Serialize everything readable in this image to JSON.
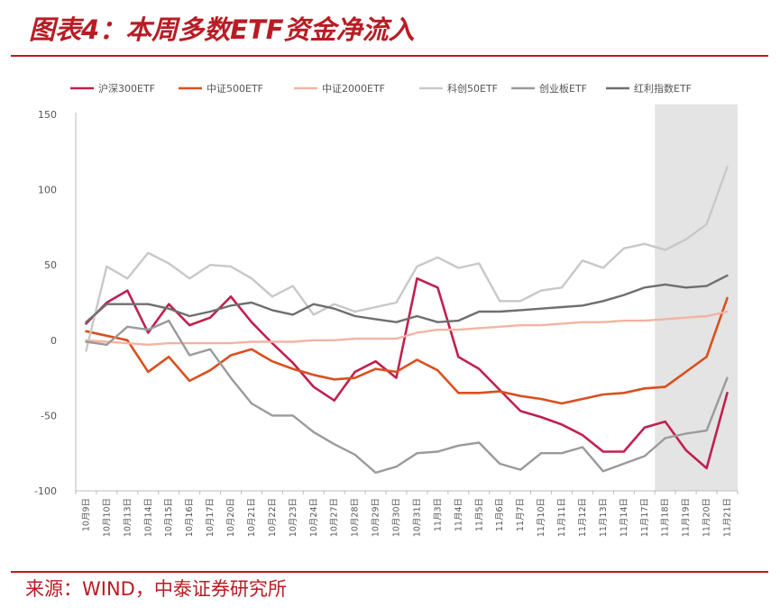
{
  "title": "图表4：本周多数ETF资金净流入",
  "source": "来源：WIND，中泰证券研究所",
  "chart_data": {
    "type": "line",
    "categories": [
      "10月9日",
      "10月10日",
      "10月13日",
      "10月14日",
      "10月15日",
      "10月16日",
      "10月17日",
      "10月20日",
      "10月21日",
      "10月22日",
      "10月23日",
      "10月24日",
      "10月27日",
      "10月28日",
      "10月29日",
      "10月30日",
      "10月31日",
      "11月3日",
      "11月4日",
      "11月5日",
      "11月6日",
      "11月7日",
      "11月10日",
      "11月11日",
      "11月12日",
      "11月13日",
      "11月14日",
      "11月17日",
      "11月18日",
      "11月19日",
      "11月20日",
      "11月21日"
    ],
    "ylim": [
      -100,
      150
    ],
    "yticks": [
      -100,
      -50,
      0,
      50,
      100,
      150
    ],
    "highlight_range": [
      "11月18日",
      "11月21日"
    ],
    "legend_position": "top",
    "series": [
      {
        "name": "沪深300ETF",
        "color": "#c0204f",
        "values": [
          11,
          25,
          33,
          5,
          24,
          10,
          15,
          29,
          12,
          -2,
          -15,
          -31,
          -40,
          -21,
          -14,
          -25,
          41,
          35,
          -11,
          -19,
          -33,
          -47,
          -51,
          -56,
          -63,
          -74,
          -74,
          -58,
          -54,
          -73,
          -85,
          -35
        ]
      },
      {
        "name": "中证500ETF",
        "color": "#d9501e",
        "values": [
          6,
          3,
          0,
          -21,
          -11,
          -27,
          -20,
          -10,
          -6,
          -14,
          -19,
          -23,
          -26,
          -25,
          -19,
          -21,
          -13,
          -20,
          -35,
          -35,
          -34,
          -37,
          -39,
          -42,
          -39,
          -36,
          -35,
          -32,
          -31,
          -21,
          -11,
          28
        ]
      },
      {
        "name": "中证2000ETF",
        "color": "#f4b3a3",
        "values": [
          0,
          -1,
          -2,
          -3,
          -2,
          -2,
          -2,
          -2,
          -1,
          -1,
          -1,
          0,
          0,
          1,
          1,
          1,
          5,
          7,
          7,
          8,
          9,
          10,
          10,
          11,
          12,
          12,
          13,
          13,
          14,
          15,
          16,
          19
        ]
      },
      {
        "name": "科创50ETF",
        "color": "#c8c8c8",
        "values": [
          -7,
          49,
          41,
          58,
          51,
          41,
          50,
          49,
          41,
          29,
          36,
          17,
          24,
          19,
          22,
          25,
          49,
          55,
          48,
          51,
          26,
          26,
          33,
          35,
          53,
          48,
          61,
          64,
          60,
          67,
          77,
          115
        ]
      },
      {
        "name": "创业板ETF",
        "color": "#9a9a9a",
        "values": [
          -1,
          -3,
          9,
          7,
          13,
          -10,
          -6,
          -25,
          -42,
          -50,
          -50,
          -61,
          -69,
          -76,
          -88,
          -84,
          -75,
          -74,
          -70,
          -68,
          -82,
          -86,
          -75,
          -75,
          -71,
          -87,
          -82,
          -77,
          -65,
          -62,
          -60,
          -25
        ]
      },
      {
        "name": "红利指数ETF",
        "color": "#6e6e6e",
        "values": [
          12,
          24,
          24,
          24,
          21,
          16,
          19,
          23,
          25,
          20,
          17,
          24,
          21,
          16,
          14,
          12,
          16,
          12,
          13,
          19,
          19,
          20,
          21,
          22,
          23,
          26,
          30,
          35,
          37,
          35,
          36,
          43
        ]
      }
    ]
  }
}
